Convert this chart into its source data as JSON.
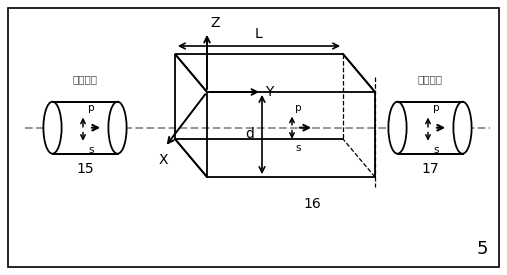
{
  "bg_color": "#ffffff",
  "border_color": "#000000",
  "label_15": "15",
  "label_16": "16",
  "label_17": "17",
  "label_5": "5",
  "label_L": "L",
  "label_d": "d",
  "label_Z": "Z",
  "label_Y": "Y",
  "label_X": "X",
  "label_p": "p",
  "label_s": "s",
  "text_input": "输入光束",
  "text_output": "输出光束",
  "dashed_beam_color": "#999999"
}
